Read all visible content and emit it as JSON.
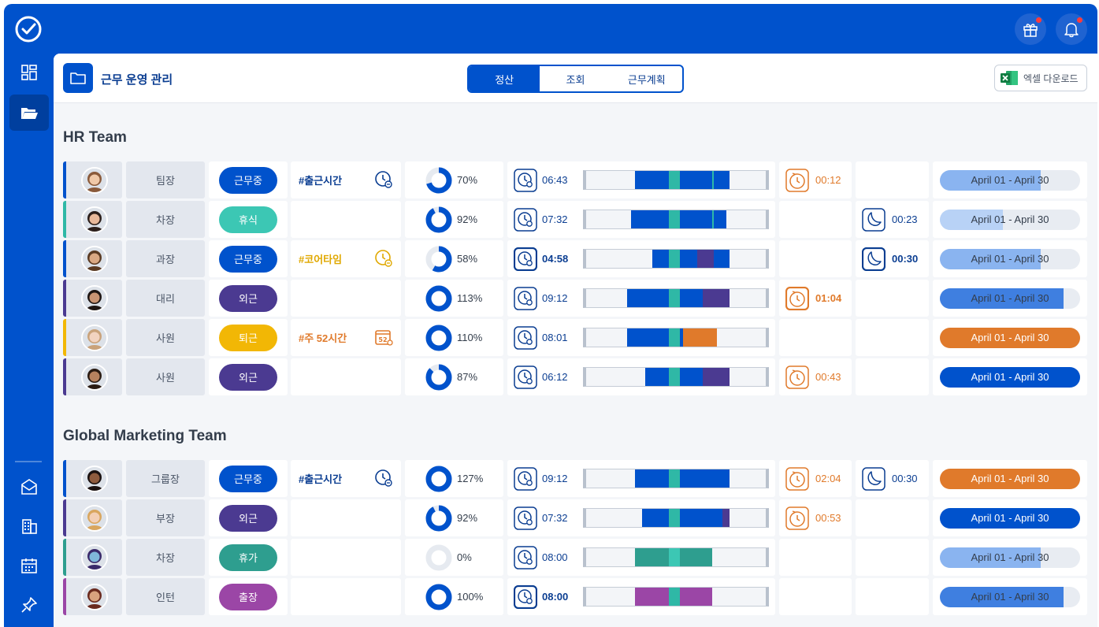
{
  "app": {
    "title": "근무 운영 관리"
  },
  "tabs": [
    {
      "label": "정산"
    },
    {
      "label": "조회"
    },
    {
      "label": "근무계획"
    }
  ],
  "excel": {
    "label": "엑셀 다운로드"
  },
  "colors": {
    "brand": "#0052CC",
    "teal": "#2FB8A6",
    "purple": "#4B3A91",
    "orange": "#E07A2B",
    "yellow": "#F2B705",
    "magenta": "#9B46A6",
    "green": "#2E9E8F"
  },
  "teams": [
    {
      "name": "HR Team",
      "rows": [
        {
          "rank": "팀장",
          "status": "근무중",
          "status_color": "#0052CC",
          "tag": "#출근시간",
          "tag_color": "#0A3D91",
          "tag_icon": "clock-plus-icon",
          "percent": "70%",
          "percent_value": 70,
          "time": "06:43",
          "time_bold": false,
          "overtime": "00:12",
          "overtime_bold": false,
          "night": "",
          "night_bold": false,
          "period": "April 01 - April 30",
          "period_fill": 0.72,
          "period_color": "#8AB4F0",
          "accent": "#0052CC",
          "segments": [
            {
              "from": 0.27,
              "to": 0.46,
              "color": "#0052CC"
            },
            {
              "from": 0.46,
              "to": 0.52,
              "color": "#2FB8A6"
            },
            {
              "from": 0.52,
              "to": 0.7,
              "color": "#0052CC"
            },
            {
              "from": 0.7,
              "to": 0.71,
              "color": "#2FB8A6"
            },
            {
              "from": 0.71,
              "to": 0.8,
              "color": "#0052CC"
            }
          ]
        },
        {
          "rank": "차장",
          "status": "휴식",
          "status_color": "#3CC7B4",
          "tag": "",
          "tag_color": "#0A3D91",
          "tag_icon": "",
          "percent": "92%",
          "percent_value": 92,
          "time": "07:32",
          "time_bold": false,
          "overtime": "",
          "overtime_bold": false,
          "night": "00:23",
          "night_bold": false,
          "period": "April 01 - April 30",
          "period_fill": 0.45,
          "period_color": "#B8D2F6",
          "accent": "#2FB8A6",
          "segments": [
            {
              "from": 0.25,
              "to": 0.46,
              "color": "#0052CC"
            },
            {
              "from": 0.46,
              "to": 0.52,
              "color": "#2FB8A6"
            },
            {
              "from": 0.52,
              "to": 0.7,
              "color": "#0052CC"
            },
            {
              "from": 0.7,
              "to": 0.71,
              "color": "#2FB8A6"
            },
            {
              "from": 0.71,
              "to": 0.78,
              "color": "#0052CC"
            }
          ]
        },
        {
          "rank": "과장",
          "status": "근무중",
          "status_color": "#0052CC",
          "tag": "#코어타임",
          "tag_color": "#E0A800",
          "tag_icon": "clock-core-icon",
          "percent": "58%",
          "percent_value": 58,
          "time": "04:58",
          "time_bold": true,
          "overtime": "",
          "overtime_bold": false,
          "night": "00:30",
          "night_bold": true,
          "period": "April 01 - April 30",
          "period_fill": 0.72,
          "period_color": "#8AB4F0",
          "accent": "#0052CC",
          "segments": [
            {
              "from": 0.37,
              "to": 0.46,
              "color": "#0052CC"
            },
            {
              "from": 0.46,
              "to": 0.52,
              "color": "#2FB8A6"
            },
            {
              "from": 0.52,
              "to": 0.62,
              "color": "#0052CC"
            },
            {
              "from": 0.62,
              "to": 0.71,
              "color": "#4B3A91"
            },
            {
              "from": 0.71,
              "to": 0.8,
              "color": "#0052CC"
            }
          ]
        },
        {
          "rank": "대리",
          "status": "외근",
          "status_color": "#4B3A91",
          "tag": "",
          "tag_color": "#0A3D91",
          "tag_icon": "",
          "percent": "113%",
          "percent_value": 113,
          "time": "09:12",
          "time_bold": false,
          "overtime": "01:04",
          "overtime_bold": true,
          "night": "",
          "night_bold": false,
          "period": "April 01 - April 30",
          "period_fill": 0.88,
          "period_color": "#3F7FE0",
          "accent": "#4B3A91",
          "segments": [
            {
              "from": 0.23,
              "to": 0.46,
              "color": "#0052CC"
            },
            {
              "from": 0.46,
              "to": 0.52,
              "color": "#2FB8A6"
            },
            {
              "from": 0.52,
              "to": 0.65,
              "color": "#0052CC"
            },
            {
              "from": 0.65,
              "to": 0.8,
              "color": "#4B3A91"
            }
          ]
        },
        {
          "rank": "사원",
          "status": "퇴근",
          "status_color": "#F2B705",
          "tag": "#주 52시간",
          "tag_color": "#E07A2B",
          "tag_icon": "calendar-52-icon",
          "percent": "110%",
          "percent_value": 110,
          "time": "08:01",
          "time_bold": false,
          "overtime": "",
          "overtime_bold": false,
          "night": "",
          "night_bold": false,
          "period": "April 01 - April 30",
          "period_fill": 1.0,
          "period_color": "#E07A2B",
          "accent": "#F2B705",
          "segments": [
            {
              "from": 0.23,
              "to": 0.46,
              "color": "#0052CC"
            },
            {
              "from": 0.46,
              "to": 0.52,
              "color": "#2FB8A6"
            },
            {
              "from": 0.52,
              "to": 0.54,
              "color": "#0052CC"
            },
            {
              "from": 0.54,
              "to": 0.73,
              "color": "#E07A2B"
            }
          ]
        },
        {
          "rank": "사원",
          "status": "외근",
          "status_color": "#4B3A91",
          "tag": "",
          "tag_color": "#0A3D91",
          "tag_icon": "",
          "percent": "87%",
          "percent_value": 87,
          "time": "06:12",
          "time_bold": false,
          "overtime": "00:43",
          "overtime_bold": false,
          "night": "",
          "night_bold": false,
          "period": "April 01 - April 30",
          "period_fill": 1.0,
          "period_color": "#0052CC",
          "accent": "#4B3A91",
          "segments": [
            {
              "from": 0.33,
              "to": 0.46,
              "color": "#0052CC"
            },
            {
              "from": 0.46,
              "to": 0.52,
              "color": "#2FB8A6"
            },
            {
              "from": 0.52,
              "to": 0.65,
              "color": "#0052CC"
            },
            {
              "from": 0.65,
              "to": 0.8,
              "color": "#4B3A91"
            }
          ]
        }
      ]
    },
    {
      "name": "Global Marketing Team",
      "rows": [
        {
          "rank": "그룹장",
          "status": "근무중",
          "status_color": "#0052CC",
          "tag": "#출근시간",
          "tag_color": "#0A3D91",
          "tag_icon": "clock-plus-icon",
          "percent": "127%",
          "percent_value": 127,
          "time": "09:12",
          "time_bold": false,
          "overtime": "02:04",
          "overtime_bold": false,
          "night": "00:30",
          "night_bold": false,
          "period": "April 01 - April 30",
          "period_fill": 1.0,
          "period_color": "#E07A2B",
          "accent": "#0052CC",
          "segments": [
            {
              "from": 0.27,
              "to": 0.46,
              "color": "#0052CC"
            },
            {
              "from": 0.46,
              "to": 0.52,
              "color": "#2FB8A6"
            },
            {
              "from": 0.52,
              "to": 0.8,
              "color": "#0052CC"
            }
          ]
        },
        {
          "rank": "부장",
          "status": "외근",
          "status_color": "#4B3A91",
          "tag": "",
          "tag_color": "#0A3D91",
          "tag_icon": "",
          "percent": "92%",
          "percent_value": 92,
          "time": "07:32",
          "time_bold": false,
          "overtime": "00:53",
          "overtime_bold": false,
          "night": "",
          "night_bold": false,
          "period": "April 01 - April 30",
          "period_fill": 1.0,
          "period_color": "#0052CC",
          "accent": "#4B3A91",
          "segments": [
            {
              "from": 0.31,
              "to": 0.46,
              "color": "#0052CC"
            },
            {
              "from": 0.46,
              "to": 0.52,
              "color": "#2FB8A6"
            },
            {
              "from": 0.52,
              "to": 0.76,
              "color": "#0052CC"
            },
            {
              "from": 0.76,
              "to": 0.8,
              "color": "#4B3A91"
            }
          ]
        },
        {
          "rank": "차장",
          "status": "휴가",
          "status_color": "#2E9E8F",
          "tag": "",
          "tag_color": "#0A3D91",
          "tag_icon": "",
          "percent": "0%",
          "percent_value": 0,
          "time": "08:00",
          "time_bold": false,
          "overtime": "",
          "overtime_bold": false,
          "night": "",
          "night_bold": false,
          "period": "April 01 - April 30",
          "period_fill": 0.72,
          "period_color": "#8AB4F0",
          "accent": "#2E9E8F",
          "segments": [
            {
              "from": 0.27,
              "to": 0.46,
              "color": "#2E9E8F"
            },
            {
              "from": 0.46,
              "to": 0.52,
              "color": "#3CC7B4"
            },
            {
              "from": 0.52,
              "to": 0.7,
              "color": "#2E9E8F"
            }
          ]
        },
        {
          "rank": "인턴",
          "status": "출장",
          "status_color": "#9B46A6",
          "tag": "",
          "tag_color": "#0A3D91",
          "tag_icon": "",
          "percent": "100%",
          "percent_value": 100,
          "time": "08:00",
          "time_bold": true,
          "overtime": "",
          "overtime_bold": false,
          "night": "",
          "night_bold": false,
          "period": "April 01 - April 30",
          "period_fill": 0.88,
          "period_color": "#3F7FE0",
          "accent": "#9B46A6",
          "segments": [
            {
              "from": 0.27,
              "to": 0.46,
              "color": "#9B46A6"
            },
            {
              "from": 0.46,
              "to": 0.52,
              "color": "#2FB8A6"
            },
            {
              "from": 0.52,
              "to": 0.7,
              "color": "#9B46A6"
            }
          ]
        }
      ]
    }
  ]
}
